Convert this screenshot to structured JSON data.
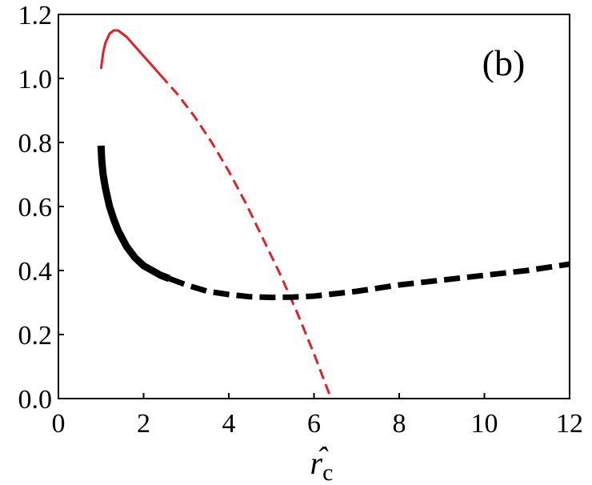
{
  "chart_data": {
    "type": "line",
    "panel_label": "(b)",
    "xlabel": "r̂",
    "xlabel_subscript": "c",
    "xlabel_hat": "ˆ",
    "xlim": [
      0,
      12
    ],
    "ylim": [
      0,
      1.2
    ],
    "xticks": [
      0,
      2,
      4,
      6,
      8,
      10,
      12
    ],
    "xtick_labels": [
      "0",
      "2",
      "4",
      "6",
      "8",
      "10",
      "12"
    ],
    "yticks": [
      0.0,
      0.2,
      0.4,
      0.6,
      0.8,
      1.0,
      1.2
    ],
    "ytick_labels": [
      "0.0",
      "0.2",
      "0.4",
      "0.6",
      "0.8",
      "1.0",
      "1.2"
    ],
    "grid": false,
    "legend": "none",
    "series": [
      {
        "color": "#e0202a",
        "style": "solid",
        "x": [
          1.0,
          1.05,
          1.1,
          1.2,
          1.3,
          1.4,
          1.5,
          1.6,
          1.8,
          2.0,
          2.2,
          2.4
        ],
        "y": [
          1.03,
          1.08,
          1.11,
          1.14,
          1.15,
          1.15,
          1.14,
          1.13,
          1.1,
          1.07,
          1.04,
          1.01
        ]
      },
      {
        "color": "#e0202a",
        "style": "dashed",
        "x": [
          2.4,
          2.8,
          3.2,
          3.6,
          4.0,
          4.4,
          4.8,
          5.2,
          5.6,
          6.0,
          6.4
        ],
        "y": [
          1.01,
          0.95,
          0.88,
          0.8,
          0.71,
          0.61,
          0.5,
          0.39,
          0.27,
          0.14,
          0.0
        ]
      },
      {
        "color": "#000000",
        "style": "solid",
        "x": [
          1.0,
          1.02,
          1.05,
          1.1,
          1.15,
          1.2,
          1.3,
          1.4,
          1.5,
          1.6,
          1.8,
          2.0,
          2.2,
          2.4,
          2.6
        ],
        "y": [
          0.79,
          0.74,
          0.7,
          0.66,
          0.63,
          0.6,
          0.56,
          0.525,
          0.5,
          0.475,
          0.44,
          0.415,
          0.4,
          0.385,
          0.375
        ]
      },
      {
        "color": "#000000",
        "style": "dashed",
        "x": [
          2.6,
          3.0,
          3.5,
          4.0,
          4.5,
          5.0,
          5.5,
          6.0,
          7.0,
          8.0,
          9.0,
          10.0,
          11.0,
          12.0
        ],
        "y": [
          0.375,
          0.355,
          0.335,
          0.325,
          0.318,
          0.316,
          0.317,
          0.32,
          0.335,
          0.355,
          0.37,
          0.385,
          0.4,
          0.42
        ]
      }
    ]
  }
}
